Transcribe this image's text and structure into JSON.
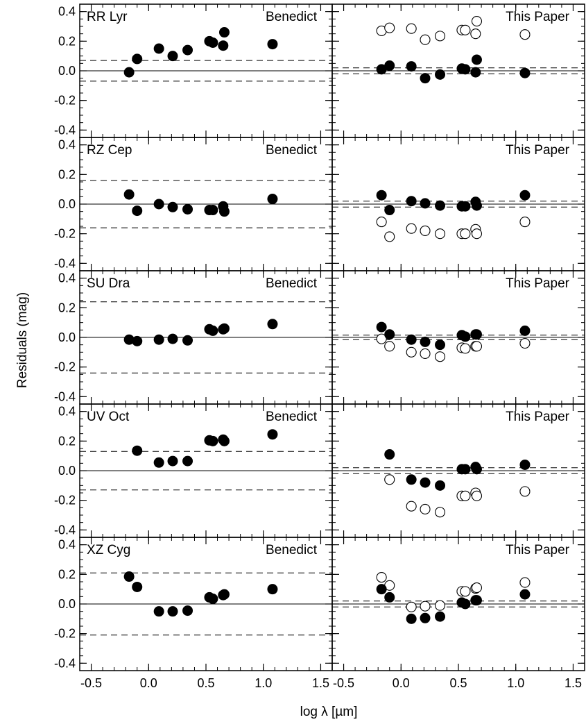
{
  "figure": {
    "ylabel": "Residuals (mag)",
    "xlabel": "log λ [µm]"
  },
  "chart_data": [
    {
      "type": "scatter",
      "star": "RR Lyr",
      "panel_label": "Benedict",
      "xlim": [
        -0.6,
        1.6
      ],
      "ylim": [
        -0.45,
        0.45
      ],
      "xticks": [
        -0.5,
        0.0,
        0.5,
        1.0,
        1.5
      ],
      "yticks": [
        -0.4,
        -0.2,
        0.0,
        0.2,
        0.4
      ],
      "hlines": {
        "solid": 0,
        "dashed": [
          0.07,
          -0.07
        ]
      },
      "series": [
        {
          "marker": "filled",
          "x": [
            -0.17,
            -0.1,
            0.09,
            0.21,
            0.34,
            0.53,
            0.56,
            0.65,
            0.66,
            1.08
          ],
          "y": [
            -0.01,
            0.08,
            0.15,
            0.1,
            0.14,
            0.2,
            0.19,
            0.17,
            0.26,
            0.18
          ]
        }
      ]
    },
    {
      "type": "scatter",
      "star": "RR Lyr",
      "panel_label": "This Paper",
      "xlim": [
        -0.6,
        1.6
      ],
      "ylim": [
        -0.45,
        0.45
      ],
      "xticks": [
        -0.5,
        0.0,
        0.5,
        1.0,
        1.5
      ],
      "yticks": [
        -0.4,
        -0.2,
        0.0,
        0.2,
        0.4
      ],
      "hlines": {
        "solid": 0,
        "dashed": [
          0.02,
          -0.02
        ]
      },
      "series": [
        {
          "marker": "filled",
          "x": [
            -0.17,
            -0.1,
            0.09,
            0.21,
            0.34,
            0.53,
            0.56,
            0.65,
            0.66,
            1.08
          ],
          "y": [
            0.01,
            0.035,
            0.03,
            -0.05,
            -0.025,
            0.015,
            0.01,
            -0.01,
            0.075,
            -0.015
          ]
        },
        {
          "marker": "open",
          "x": [
            -0.17,
            -0.1,
            0.09,
            0.21,
            0.34,
            0.53,
            0.56,
            0.65,
            0.66,
            1.08
          ],
          "y": [
            0.27,
            0.29,
            0.285,
            0.21,
            0.235,
            0.275,
            0.275,
            0.25,
            0.335,
            0.245
          ]
        }
      ]
    },
    {
      "type": "scatter",
      "star": "RZ Cep",
      "panel_label": "Benedict",
      "xlim": [
        -0.6,
        1.6
      ],
      "ylim": [
        -0.45,
        0.45
      ],
      "xticks": [
        -0.5,
        0.0,
        0.5,
        1.0,
        1.5
      ],
      "yticks": [
        -0.4,
        -0.2,
        0.0,
        0.2,
        0.4
      ],
      "hlines": {
        "solid": 0,
        "dashed": [
          0.16,
          -0.16
        ]
      },
      "series": [
        {
          "marker": "filled",
          "x": [
            -0.17,
            -0.1,
            0.09,
            0.21,
            0.34,
            0.53,
            0.56,
            0.65,
            0.66,
            1.08
          ],
          "y": [
            0.065,
            -0.045,
            0.0,
            -0.02,
            -0.035,
            -0.04,
            -0.04,
            -0.015,
            -0.05,
            0.035
          ]
        }
      ]
    },
    {
      "type": "scatter",
      "star": "RZ Cep",
      "panel_label": "This Paper",
      "xlim": [
        -0.6,
        1.6
      ],
      "ylim": [
        -0.45,
        0.45
      ],
      "xticks": [
        -0.5,
        0.0,
        0.5,
        1.0,
        1.5
      ],
      "yticks": [
        -0.4,
        -0.2,
        0.0,
        0.2,
        0.4
      ],
      "hlines": {
        "solid": 0,
        "dashed": [
          0.02,
          -0.02
        ]
      },
      "series": [
        {
          "marker": "filled",
          "x": [
            -0.17,
            -0.1,
            0.09,
            0.21,
            0.34,
            0.53,
            0.56,
            0.65,
            0.66,
            1.08
          ],
          "y": [
            0.06,
            -0.04,
            0.02,
            0.005,
            -0.01,
            -0.015,
            -0.015,
            0.015,
            -0.01,
            0.06
          ]
        },
        {
          "marker": "open",
          "x": [
            -0.17,
            -0.1,
            0.09,
            0.21,
            0.34,
            0.53,
            0.56,
            0.65,
            0.66,
            1.08
          ],
          "y": [
            -0.12,
            -0.22,
            -0.165,
            -0.18,
            -0.2,
            -0.2,
            -0.2,
            -0.17,
            -0.2,
            -0.12
          ]
        }
      ]
    },
    {
      "type": "scatter",
      "star": "SU Dra",
      "panel_label": "Benedict",
      "xlim": [
        -0.6,
        1.6
      ],
      "ylim": [
        -0.45,
        0.45
      ],
      "xticks": [
        -0.5,
        0.0,
        0.5,
        1.0,
        1.5
      ],
      "yticks": [
        -0.4,
        -0.2,
        0.0,
        0.2,
        0.4
      ],
      "hlines": {
        "solid": 0,
        "dashed": [
          0.24,
          -0.24
        ]
      },
      "series": [
        {
          "marker": "filled",
          "x": [
            -0.17,
            -0.1,
            0.09,
            0.21,
            0.34,
            0.53,
            0.56,
            0.65,
            0.66,
            1.08
          ],
          "y": [
            -0.015,
            -0.025,
            -0.015,
            -0.01,
            -0.02,
            0.055,
            0.045,
            0.055,
            0.06,
            0.09
          ]
        }
      ]
    },
    {
      "type": "scatter",
      "star": "SU Dra",
      "panel_label": "This Paper",
      "xlim": [
        -0.6,
        1.6
      ],
      "ylim": [
        -0.45,
        0.45
      ],
      "xticks": [
        -0.5,
        0.0,
        0.5,
        1.0,
        1.5
      ],
      "yticks": [
        -0.4,
        -0.2,
        0.0,
        0.2,
        0.4
      ],
      "hlines": {
        "solid": 0,
        "dashed": [
          0.015,
          -0.015
        ]
      },
      "series": [
        {
          "marker": "filled",
          "x": [
            -0.17,
            -0.1,
            0.09,
            0.21,
            0.34,
            0.53,
            0.56,
            0.65,
            0.66,
            1.08
          ],
          "y": [
            0.07,
            0.02,
            -0.015,
            -0.03,
            -0.05,
            0.015,
            0.005,
            0.02,
            0.02,
            0.045
          ]
        },
        {
          "marker": "open",
          "x": [
            -0.17,
            -0.1,
            0.09,
            0.21,
            0.34,
            0.53,
            0.56,
            0.65,
            0.66,
            1.08
          ],
          "y": [
            -0.01,
            -0.06,
            -0.1,
            -0.11,
            -0.13,
            -0.07,
            -0.075,
            -0.06,
            -0.06,
            -0.04
          ]
        }
      ]
    },
    {
      "type": "scatter",
      "star": "UV Oct",
      "panel_label": "Benedict",
      "xlim": [
        -0.6,
        1.6
      ],
      "ylim": [
        -0.45,
        0.45
      ],
      "xticks": [
        -0.5,
        0.0,
        0.5,
        1.0,
        1.5
      ],
      "yticks": [
        -0.4,
        -0.2,
        0.0,
        0.2,
        0.4
      ],
      "hlines": {
        "solid": 0,
        "dashed": [
          0.13,
          -0.13
        ]
      },
      "series": [
        {
          "marker": "filled",
          "x": [
            -0.1,
            0.09,
            0.21,
            0.34,
            0.53,
            0.56,
            0.65,
            0.66,
            1.08
          ],
          "y": [
            0.135,
            0.055,
            0.065,
            0.065,
            0.205,
            0.2,
            0.21,
            0.2,
            0.245
          ]
        }
      ]
    },
    {
      "type": "scatter",
      "star": "UV Oct",
      "panel_label": "This Paper",
      "xlim": [
        -0.6,
        1.6
      ],
      "ylim": [
        -0.45,
        0.45
      ],
      "xticks": [
        -0.5,
        0.0,
        0.5,
        1.0,
        1.5
      ],
      "yticks": [
        -0.4,
        -0.2,
        0.0,
        0.2,
        0.4
      ],
      "hlines": {
        "solid": 0,
        "dashed": [
          0.02,
          -0.02
        ]
      },
      "series": [
        {
          "marker": "filled",
          "x": [
            -0.1,
            0.09,
            0.21,
            0.34,
            0.53,
            0.56,
            0.65,
            0.66,
            1.08
          ],
          "y": [
            0.11,
            -0.06,
            -0.08,
            -0.1,
            0.01,
            0.01,
            0.025,
            0.01,
            0.04
          ]
        },
        {
          "marker": "open",
          "x": [
            -0.1,
            0.09,
            0.21,
            0.34,
            0.53,
            0.56,
            0.65,
            0.66,
            1.08
          ],
          "y": [
            -0.06,
            -0.24,
            -0.26,
            -0.28,
            -0.17,
            -0.17,
            -0.15,
            -0.17,
            -0.14
          ]
        }
      ]
    },
    {
      "type": "scatter",
      "star": "XZ Cyg",
      "panel_label": "Benedict",
      "xlim": [
        -0.6,
        1.6
      ],
      "ylim": [
        -0.45,
        0.45
      ],
      "xticks": [
        -0.5,
        0.0,
        0.5,
        1.0,
        1.5
      ],
      "yticks": [
        -0.4,
        -0.2,
        0.0,
        0.2,
        0.4
      ],
      "hlines": {
        "solid": 0,
        "dashed": [
          0.21,
          -0.21
        ]
      },
      "series": [
        {
          "marker": "filled",
          "x": [
            -0.17,
            -0.1,
            0.09,
            0.21,
            0.34,
            0.53,
            0.56,
            0.65,
            0.66,
            1.08
          ],
          "y": [
            0.185,
            0.115,
            -0.05,
            -0.05,
            -0.045,
            0.045,
            0.035,
            0.06,
            0.065,
            0.1
          ]
        }
      ]
    },
    {
      "type": "scatter",
      "star": "XZ Cyg",
      "panel_label": "This Paper",
      "xlim": [
        -0.6,
        1.6
      ],
      "ylim": [
        -0.45,
        0.45
      ],
      "xticks": [
        -0.5,
        0.0,
        0.5,
        1.0,
        1.5
      ],
      "yticks": [
        -0.4,
        -0.2,
        0.0,
        0.2,
        0.4
      ],
      "hlines": {
        "solid": 0,
        "dashed": [
          0.02,
          -0.02
        ]
      },
      "series": [
        {
          "marker": "filled",
          "x": [
            -0.17,
            -0.1,
            0.09,
            0.21,
            0.34,
            0.53,
            0.56,
            0.65,
            0.66,
            1.08
          ],
          "y": [
            0.1,
            0.045,
            -0.1,
            -0.095,
            -0.085,
            0.01,
            0.0,
            0.025,
            0.025,
            0.065
          ]
        },
        {
          "marker": "open",
          "x": [
            -0.17,
            -0.1,
            0.09,
            0.21,
            0.34,
            0.53,
            0.56,
            0.65,
            0.66,
            1.08
          ],
          "y": [
            0.18,
            0.125,
            -0.02,
            -0.015,
            -0.01,
            0.085,
            0.085,
            0.105,
            0.11,
            0.145
          ]
        }
      ]
    }
  ]
}
